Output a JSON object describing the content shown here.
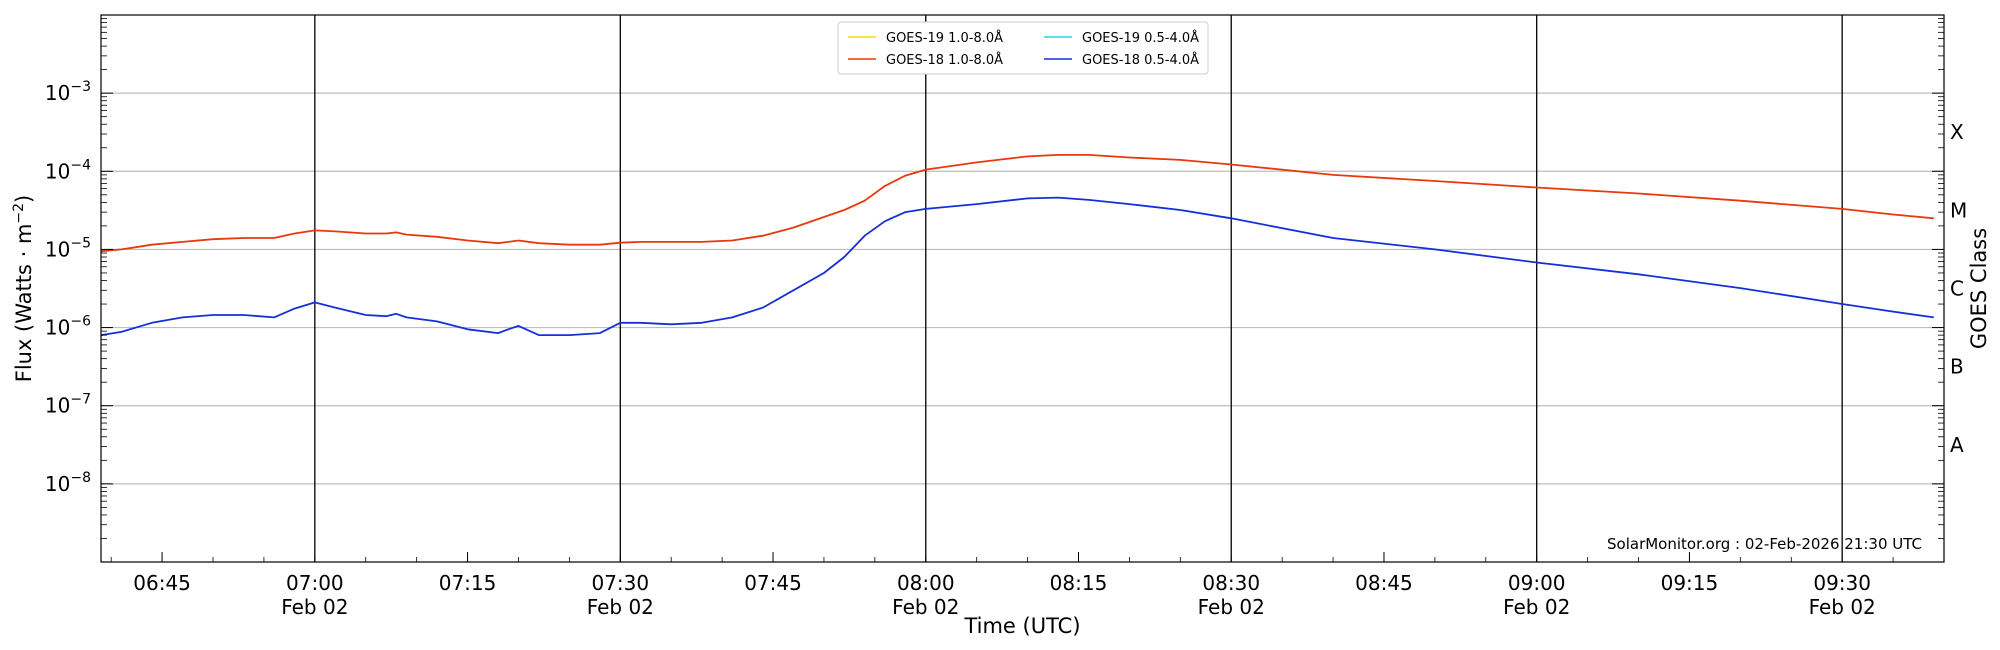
{
  "chart_data": {
    "type": "line",
    "title": "",
    "xlabel": "Time (UTC)",
    "ylabel": "Flux (Watts · m",
    "ylabel_sup": "−2",
    "ylabel_close": ")",
    "y2label": "GOES Class",
    "yscale": "log",
    "ylim": [
      1e-09,
      0.01
    ],
    "xlim": [
      "06:39",
      "09:40"
    ],
    "x_minor_ticks": [
      "06:45",
      "07:15",
      "07:45",
      "08:15",
      "08:45",
      "09:15"
    ],
    "x_major_ticks": [
      {
        "time": "07:00",
        "date": "Feb 02"
      },
      {
        "time": "07:30",
        "date": "Feb 02"
      },
      {
        "time": "08:00",
        "date": "Feb 02"
      },
      {
        "time": "08:30",
        "date": "Feb 02"
      },
      {
        "time": "09:00",
        "date": "Feb 02"
      },
      {
        "time": "09:30",
        "date": "Feb 02"
      }
    ],
    "y_ticks": [
      {
        "exp": -8,
        "label_base": "10",
        "label_exp": "−8"
      },
      {
        "exp": -7,
        "label_base": "10",
        "label_exp": "−7"
      },
      {
        "exp": -6,
        "label_base": "10",
        "label_exp": "−6"
      },
      {
        "exp": -5,
        "label_base": "10",
        "label_exp": "−5"
      },
      {
        "exp": -4,
        "label_base": "10",
        "label_exp": "−4"
      },
      {
        "exp": -3,
        "label_base": "10",
        "label_exp": "−3"
      }
    ],
    "goes_classes": [
      {
        "label": "A",
        "exp": -7.5
      },
      {
        "label": "B",
        "exp": -6.5
      },
      {
        "label": "C",
        "exp": -5.5
      },
      {
        "label": "M",
        "exp": -4.5
      },
      {
        "label": "X",
        "exp": -3.5
      }
    ],
    "grid": {
      "y_major": true,
      "x_hourly_lines": true
    },
    "legend_position": "top-center",
    "series": [
      {
        "name": "GOES-19 1.0-8.0Å",
        "color": "#ffd700",
        "x": [],
        "y": []
      },
      {
        "name": "GOES-19 0.5-4.0Å",
        "color": "#22d3ee",
        "x": [],
        "y": []
      },
      {
        "name": "GOES-18 1.0-8.0Å",
        "color": "#e8380d",
        "x": [
          "06:39",
          "06:41",
          "06:44",
          "06:47",
          "06:50",
          "06:53",
          "06:56",
          "06:58",
          "07:00",
          "07:02",
          "07:05",
          "07:07",
          "07:08",
          "07:09",
          "07:12",
          "07:15",
          "07:18",
          "07:19",
          "07:20",
          "07:22",
          "07:25",
          "07:28",
          "07:30",
          "07:32",
          "07:35",
          "07:38",
          "07:41",
          "07:44",
          "07:47",
          "07:50",
          "07:52",
          "07:54",
          "07:56",
          "07:58",
          "08:00",
          "08:05",
          "08:10",
          "08:13",
          "08:16",
          "08:20",
          "08:25",
          "08:30",
          "08:40",
          "08:50",
          "09:00",
          "09:10",
          "09:20",
          "09:30",
          "09:35",
          "09:39"
        ],
        "y": [
          9.5e-06,
          1e-05,
          1.15e-05,
          1.25e-05,
          1.35e-05,
          1.4e-05,
          1.4e-05,
          1.6e-05,
          1.75e-05,
          1.7e-05,
          1.6e-05,
          1.6e-05,
          1.65e-05,
          1.55e-05,
          1.45e-05,
          1.3e-05,
          1.2e-05,
          1.25e-05,
          1.3e-05,
          1.2e-05,
          1.15e-05,
          1.15e-05,
          1.22e-05,
          1.25e-05,
          1.25e-05,
          1.25e-05,
          1.3e-05,
          1.5e-05,
          1.9e-05,
          2.6e-05,
          3.2e-05,
          4.2e-05,
          6.5e-05,
          8.8e-05,
          0.000105,
          0.00013,
          0.000155,
          0.000162,
          0.000162,
          0.00015,
          0.00014,
          0.000122,
          9e-05,
          7.5e-05,
          6.2e-05,
          5.2e-05,
          4.2e-05,
          3.3e-05,
          2.8e-05,
          2.5e-05
        ]
      },
      {
        "name": "GOES-18 0.5-4.0Å",
        "color": "#1430d8",
        "x": [
          "06:39",
          "06:41",
          "06:44",
          "06:47",
          "06:50",
          "06:53",
          "06:56",
          "06:58",
          "07:00",
          "07:02",
          "07:05",
          "07:07",
          "07:08",
          "07:09",
          "07:12",
          "07:15",
          "07:18",
          "07:19",
          "07:20",
          "07:22",
          "07:25",
          "07:28",
          "07:30",
          "07:32",
          "07:35",
          "07:38",
          "07:41",
          "07:44",
          "07:47",
          "07:50",
          "07:52",
          "07:54",
          "07:56",
          "07:58",
          "08:00",
          "08:05",
          "08:10",
          "08:13",
          "08:16",
          "08:20",
          "08:25",
          "08:30",
          "08:40",
          "08:50",
          "09:00",
          "09:10",
          "09:20",
          "09:30",
          "09:35",
          "09:39"
        ],
        "y": [
          8e-07,
          8.8e-07,
          1.15e-06,
          1.35e-06,
          1.45e-06,
          1.45e-06,
          1.35e-06,
          1.75e-06,
          2.1e-06,
          1.8e-06,
          1.45e-06,
          1.4e-06,
          1.5e-06,
          1.35e-06,
          1.2e-06,
          9.5e-07,
          8.5e-07,
          9.5e-07,
          1.05e-06,
          8e-07,
          8e-07,
          8.5e-07,
          1.15e-06,
          1.15e-06,
          1.1e-06,
          1.15e-06,
          1.35e-06,
          1.8e-06,
          3e-06,
          5e-06,
          8e-06,
          1.5e-05,
          2.3e-05,
          3e-05,
          3.3e-05,
          3.8e-05,
          4.5e-05,
          4.6e-05,
          4.3e-05,
          3.8e-05,
          3.2e-05,
          2.5e-05,
          1.4e-05,
          1e-05,
          6.8e-06,
          4.8e-06,
          3.2e-06,
          2e-06,
          1.6e-06,
          1.35e-06
        ]
      }
    ],
    "annotation": "SolarMonitor.org : 02-Feb-2026 21:30 UTC"
  }
}
